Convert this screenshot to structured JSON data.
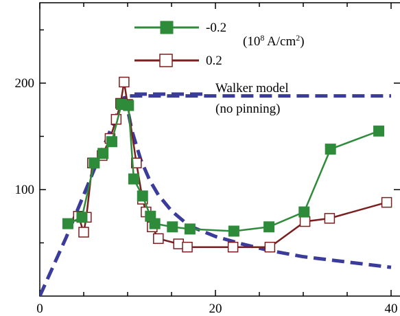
{
  "chart_data": {
    "type": "line",
    "title": "",
    "xlabel": "",
    "ylabel": "",
    "xlim": [
      0,
      40
    ],
    "ylim": [
      0,
      260
    ],
    "x_ticks": [
      0,
      20,
      40
    ],
    "x_tick_labels": [
      "0",
      "20",
      "40"
    ],
    "y_ticks": [
      100,
      200
    ],
    "y_tick_labels": [
      "100",
      "200"
    ],
    "grid": false,
    "legend_placement": "top-center",
    "legend_unit_label": {
      "base": "(10",
      "exp1": "8",
      "mid": " A/cm",
      "exp2": "2",
      "end": ")"
    },
    "series": [
      {
        "name": "-0.2",
        "color": "#2e8b3a",
        "marker": "filled-square",
        "x": [
          3.2,
          4.8,
          6.2,
          7.2,
          8.2,
          9.3,
          10.1,
          10.7,
          11.7,
          12.6,
          13.1,
          15.1,
          17.1,
          22.1,
          26.1,
          30.1,
          33.1,
          38.6
        ],
        "y": [
          68,
          74,
          125,
          134,
          145,
          180,
          179,
          110,
          94,
          75,
          68,
          65,
          63,
          61,
          65,
          79,
          138,
          155
        ]
      },
      {
        "name": "0.2",
        "color": "#7a1e1e",
        "marker": "open-square",
        "x": [
          4.4,
          5.0,
          5.3,
          6.0,
          7.1,
          8.0,
          8.7,
          9.2,
          9.6,
          10.0,
          11.0,
          11.7,
          12.1,
          12.8,
          13.5,
          15.8,
          16.8,
          22.0,
          26.2,
          30.2,
          33.0,
          39.5
        ],
        "y": [
          75,
          60,
          74,
          125,
          132,
          148,
          166,
          181,
          201,
          180,
          125,
          91,
          79,
          65,
          54,
          49,
          46,
          46,
          46,
          70,
          73,
          88
        ]
      },
      {
        "name": "Walker model (no pinning)",
        "color": "#3b3b9b",
        "style": "dashed",
        "x": [
          0,
          3,
          5,
          7,
          9,
          9.7,
          12,
          14,
          16,
          18,
          20,
          25,
          30,
          35,
          40
        ],
        "y": [
          0,
          55,
          95,
          135,
          175,
          188,
          188,
          188,
          188,
          188,
          188,
          188,
          188,
          188,
          188
        ]
      },
      {
        "name": "Walker model (no pinning) decay",
        "color": "#3b3b9b",
        "style": "dashed",
        "x": [
          9.7,
          10.5,
          11.5,
          12.5,
          13.5,
          15,
          17,
          20,
          23,
          26,
          30,
          35,
          40
        ],
        "y": [
          188,
          155,
          128,
          109,
          95,
          80,
          66,
          56,
          49,
          43,
          37,
          32,
          27
        ]
      }
    ]
  },
  "legend": {
    "entries": [
      {
        "label": "-0.2"
      },
      {
        "label": "0.2"
      },
      {
        "label_line1": "Walker model",
        "label_line2": "(no pinning)"
      }
    ]
  }
}
